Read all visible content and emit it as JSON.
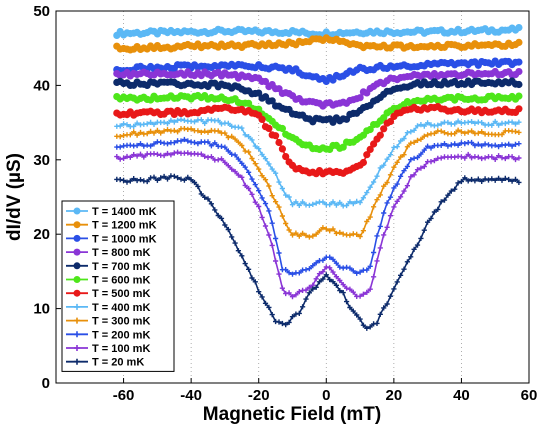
{
  "chart_data": {
    "type": "line",
    "xlabel": "Magnetic Field (mT)",
    "ylabel": "dI/dV (µS)",
    "xlim": [
      -80,
      60
    ],
    "ylim": [
      0,
      50
    ],
    "xticks": [
      -60,
      -40,
      -20,
      0,
      20,
      40,
      60
    ],
    "yticks": [
      0,
      10,
      20,
      30,
      40,
      50
    ],
    "grid": "vertical dotted at x ticks",
    "legend_position": "bottom-left",
    "series": [
      {
        "name": "T = 1400 mK",
        "color": "#5bb8f5",
        "marker": "circle",
        "points": [
          [
            -62,
            47.0
          ],
          [
            -50,
            47.1
          ],
          [
            -40,
            47.2
          ],
          [
            -30,
            47.3
          ],
          [
            -20,
            47.2
          ],
          [
            -10,
            47.2
          ],
          [
            -5,
            47.0
          ],
          [
            0,
            47.0
          ],
          [
            5,
            47.1
          ],
          [
            10,
            47.2
          ],
          [
            20,
            47.2
          ],
          [
            30,
            47.2
          ],
          [
            40,
            47.3
          ],
          [
            50,
            47.4
          ],
          [
            57,
            47.5
          ]
        ]
      },
      {
        "name": "T = 1200 mK",
        "color": "#e8900b",
        "marker": "circle",
        "points": [
          [
            -62,
            45.0
          ],
          [
            -50,
            45.1
          ],
          [
            -40,
            45.3
          ],
          [
            -30,
            45.3
          ],
          [
            -20,
            45.4
          ],
          [
            -10,
            45.6
          ],
          [
            -5,
            45.9
          ],
          [
            0,
            46.4
          ],
          [
            5,
            45.9
          ],
          [
            10,
            45.3
          ],
          [
            20,
            45.2
          ],
          [
            30,
            45.2
          ],
          [
            40,
            45.3
          ],
          [
            50,
            45.4
          ],
          [
            57,
            45.5
          ]
        ]
      },
      {
        "name": "T = 1000 mK",
        "color": "#2a4fe6",
        "marker": "circle",
        "points": [
          [
            -62,
            42.2
          ],
          [
            -50,
            42.4
          ],
          [
            -40,
            42.6
          ],
          [
            -30,
            42.7
          ],
          [
            -20,
            42.6
          ],
          [
            -10,
            42.2
          ],
          [
            -5,
            41.2
          ],
          [
            0,
            40.7
          ],
          [
            5,
            41.3
          ],
          [
            10,
            42.2
          ],
          [
            20,
            42.6
          ],
          [
            30,
            42.8
          ],
          [
            40,
            42.9
          ],
          [
            50,
            43.0
          ],
          [
            57,
            43.1
          ]
        ]
      },
      {
        "name": "T = 800 mK",
        "color": "#8a35d6",
        "marker": "circle",
        "points": [
          [
            -62,
            41.5
          ],
          [
            -50,
            41.5
          ],
          [
            -40,
            41.6
          ],
          [
            -30,
            41.5
          ],
          [
            -20,
            40.8
          ],
          [
            -15,
            39.6
          ],
          [
            -10,
            38.4
          ],
          [
            -5,
            37.6
          ],
          [
            0,
            37.4
          ],
          [
            5,
            37.6
          ],
          [
            10,
            38.6
          ],
          [
            15,
            40.0
          ],
          [
            20,
            41.0
          ],
          [
            30,
            41.4
          ],
          [
            40,
            41.5
          ],
          [
            50,
            41.6
          ],
          [
            57,
            41.6
          ]
        ]
      },
      {
        "name": "T = 700 mK",
        "color": "#0d2b6b",
        "marker": "circle",
        "points": [
          [
            -62,
            40.3
          ],
          [
            -50,
            40.2
          ],
          [
            -40,
            40.2
          ],
          [
            -30,
            40.0
          ],
          [
            -25,
            39.6
          ],
          [
            -20,
            38.8
          ],
          [
            -15,
            37.5
          ],
          [
            -10,
            36.3
          ],
          [
            -5,
            35.4
          ],
          [
            0,
            35.2
          ],
          [
            5,
            35.5
          ],
          [
            10,
            36.6
          ],
          [
            15,
            38.2
          ],
          [
            20,
            39.5
          ],
          [
            25,
            40.1
          ],
          [
            30,
            40.3
          ],
          [
            40,
            40.3
          ],
          [
            50,
            40.4
          ],
          [
            57,
            40.4
          ]
        ]
      },
      {
        "name": "T = 600 mK",
        "color": "#4ee61a",
        "marker": "circle",
        "points": [
          [
            -62,
            38.3
          ],
          [
            -50,
            38.3
          ],
          [
            -40,
            38.4
          ],
          [
            -30,
            38.3
          ],
          [
            -25,
            37.8
          ],
          [
            -20,
            36.7
          ],
          [
            -15,
            34.8
          ],
          [
            -10,
            32.8
          ],
          [
            -5,
            31.8
          ],
          [
            0,
            31.5
          ],
          [
            5,
            31.9
          ],
          [
            10,
            33.0
          ],
          [
            15,
            35.0
          ],
          [
            20,
            36.8
          ],
          [
            25,
            37.8
          ],
          [
            30,
            38.2
          ],
          [
            40,
            38.3
          ],
          [
            50,
            38.3
          ],
          [
            57,
            38.4
          ]
        ]
      },
      {
        "name": "T = 500 mK",
        "color": "#e81919",
        "marker": "circle",
        "points": [
          [
            -62,
            36.2
          ],
          [
            -50,
            36.3
          ],
          [
            -40,
            36.4
          ],
          [
            -30,
            36.8
          ],
          [
            -25,
            36.8
          ],
          [
            -20,
            35.8
          ],
          [
            -15,
            33.0
          ],
          [
            -12,
            30.5
          ],
          [
            -10,
            29.0
          ],
          [
            -5,
            28.3
          ],
          [
            0,
            28.3
          ],
          [
            5,
            28.4
          ],
          [
            10,
            29.0
          ],
          [
            12,
            30.5
          ],
          [
            15,
            33.0
          ],
          [
            20,
            35.8
          ],
          [
            25,
            36.8
          ],
          [
            30,
            37.0
          ],
          [
            40,
            36.6
          ],
          [
            50,
            36.5
          ],
          [
            57,
            36.6
          ]
        ]
      },
      {
        "name": "T = 400 mK",
        "color": "#5bb8f5",
        "marker": "plus",
        "points": [
          [
            -62,
            34.6
          ],
          [
            -50,
            35.0
          ],
          [
            -40,
            35.2
          ],
          [
            -30,
            35.0
          ],
          [
            -25,
            34.0
          ],
          [
            -20,
            31.5
          ],
          [
            -15,
            28.0
          ],
          [
            -12,
            25.5
          ],
          [
            -10,
            24.2
          ],
          [
            -5,
            24.0
          ],
          [
            0,
            24.2
          ],
          [
            5,
            24.0
          ],
          [
            10,
            24.3
          ],
          [
            12,
            25.5
          ],
          [
            15,
            28.0
          ],
          [
            20,
            31.5
          ],
          [
            25,
            34.0
          ],
          [
            30,
            34.8
          ],
          [
            40,
            35.0
          ],
          [
            50,
            34.9
          ],
          [
            57,
            35.0
          ]
        ]
      },
      {
        "name": "T = 300 mK",
        "color": "#e8900b",
        "marker": "plus",
        "points": [
          [
            -62,
            33.3
          ],
          [
            -50,
            33.8
          ],
          [
            -40,
            34.1
          ],
          [
            -30,
            33.5
          ],
          [
            -25,
            32.0
          ],
          [
            -20,
            29.0
          ],
          [
            -15,
            24.5
          ],
          [
            -12,
            21.5
          ],
          [
            -10,
            20.0
          ],
          [
            -5,
            19.8
          ],
          [
            0,
            20.9
          ],
          [
            5,
            19.8
          ],
          [
            10,
            19.8
          ],
          [
            12,
            21.5
          ],
          [
            15,
            24.5
          ],
          [
            20,
            29.0
          ],
          [
            25,
            32.2
          ],
          [
            30,
            33.5
          ],
          [
            40,
            33.8
          ],
          [
            50,
            33.6
          ],
          [
            57,
            33.7
          ]
        ]
      },
      {
        "name": "T = 200 mK",
        "color": "#2a4fe6",
        "marker": "plus",
        "points": [
          [
            -62,
            31.8
          ],
          [
            -50,
            32.2
          ],
          [
            -40,
            32.6
          ],
          [
            -30,
            31.8
          ],
          [
            -25,
            29.8
          ],
          [
            -20,
            26.0
          ],
          [
            -17,
            23.0
          ],
          [
            -15,
            19.5
          ],
          [
            -13,
            15.5
          ],
          [
            -10,
            14.8
          ],
          [
            -5,
            15.3
          ],
          [
            0,
            17.0
          ],
          [
            5,
            15.5
          ],
          [
            10,
            14.8
          ],
          [
            13,
            15.5
          ],
          [
            15,
            19.5
          ],
          [
            17,
            23.0
          ],
          [
            20,
            26.0
          ],
          [
            25,
            29.8
          ],
          [
            30,
            31.6
          ],
          [
            40,
            32.2
          ],
          [
            50,
            32.0
          ],
          [
            57,
            32.0
          ]
        ]
      },
      {
        "name": "T = 100 mK",
        "color": "#8a35d6",
        "marker": "plus",
        "points": [
          [
            -62,
            30.3
          ],
          [
            -50,
            30.6
          ],
          [
            -40,
            31.0
          ],
          [
            -30,
            29.8
          ],
          [
            -25,
            27.5
          ],
          [
            -20,
            23.5
          ],
          [
            -17,
            20.0
          ],
          [
            -15,
            16.5
          ],
          [
            -13,
            12.5
          ],
          [
            -10,
            11.5
          ],
          [
            -5,
            12.8
          ],
          [
            0,
            15.8
          ],
          [
            5,
            13.0
          ],
          [
            10,
            11.5
          ],
          [
            13,
            12.5
          ],
          [
            15,
            16.5
          ],
          [
            17,
            20.0
          ],
          [
            20,
            23.5
          ],
          [
            25,
            27.5
          ],
          [
            30,
            29.8
          ],
          [
            40,
            30.5
          ],
          [
            50,
            30.3
          ],
          [
            57,
            30.3
          ]
        ]
      },
      {
        "name": "T =   20 mK",
        "color": "#0d2b6b",
        "marker": "plus",
        "points": [
          [
            -62,
            27.3
          ],
          [
            -55,
            27.2
          ],
          [
            -50,
            27.5
          ],
          [
            -45,
            27.7
          ],
          [
            -40,
            27.4
          ],
          [
            -35,
            24.5
          ],
          [
            -30,
            21.5
          ],
          [
            -25,
            17.0
          ],
          [
            -20,
            12.5
          ],
          [
            -17,
            10.0
          ],
          [
            -15,
            8.2
          ],
          [
            -12,
            7.8
          ],
          [
            -8,
            9.5
          ],
          [
            -5,
            12.0
          ],
          [
            0,
            14.5
          ],
          [
            5,
            12.0
          ],
          [
            8,
            9.5
          ],
          [
            12,
            7.5
          ],
          [
            15,
            8.2
          ],
          [
            17,
            10.0
          ],
          [
            20,
            12.5
          ],
          [
            25,
            17.0
          ],
          [
            30,
            21.5
          ],
          [
            35,
            24.8
          ],
          [
            40,
            27.3
          ],
          [
            50,
            27.4
          ],
          [
            57,
            27.1
          ]
        ]
      }
    ]
  }
}
